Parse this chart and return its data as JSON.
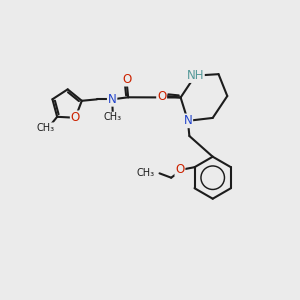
{
  "bg_color": "#ebebeb",
  "bond_color": "#1c1c1c",
  "nitrogen_color": "#2244cc",
  "oxygen_color": "#cc2200",
  "nh_color": "#559999",
  "bond_width": 1.5,
  "dbo": 0.055,
  "font_size": 8.5,
  "fig_width": 3.0,
  "fig_height": 3.0,
  "dpi": 100,
  "xlim": [
    0,
    10
  ],
  "ylim": [
    0,
    10
  ]
}
